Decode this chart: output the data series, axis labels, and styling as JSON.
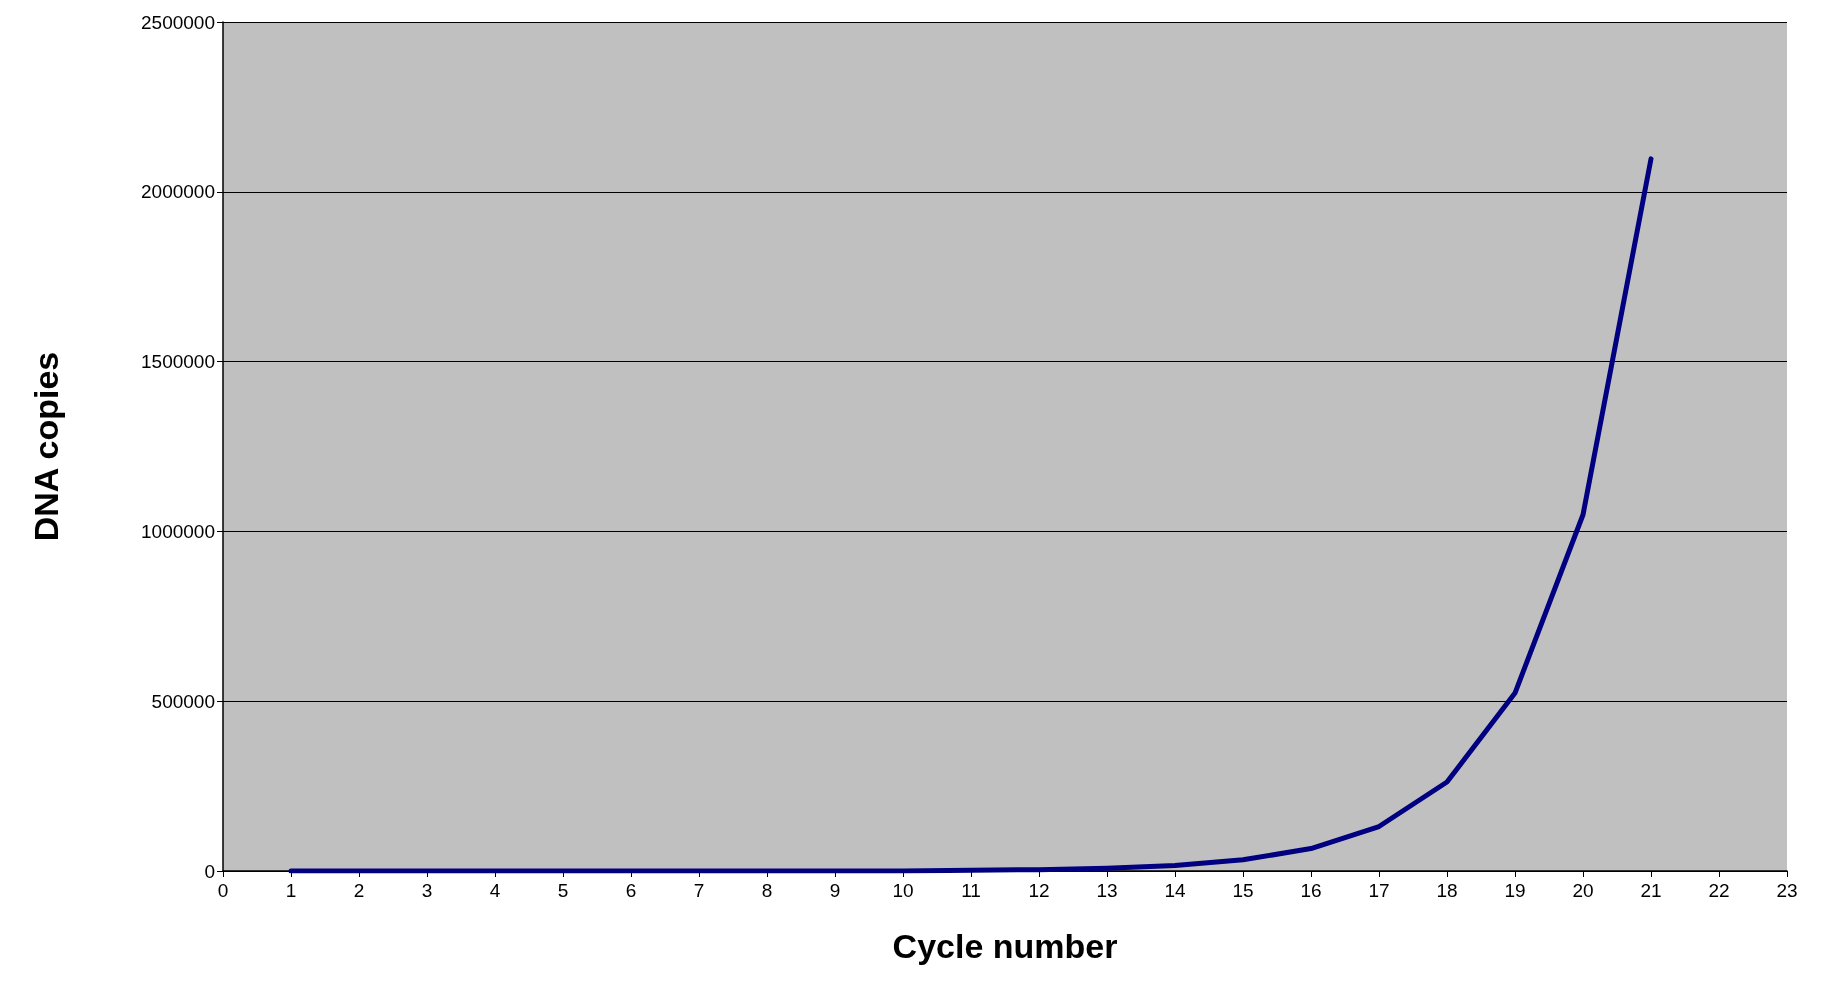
{
  "chart_data": {
    "type": "line",
    "xlabel": "Cycle number",
    "ylabel": "DNA copies",
    "x": [
      1,
      2,
      3,
      4,
      5,
      6,
      7,
      8,
      9,
      10,
      11,
      12,
      13,
      14,
      15,
      16,
      17,
      18,
      19,
      20,
      21
    ],
    "series": [
      {
        "color": "#000080",
        "values": [
          0,
          0,
          0,
          0,
          0,
          0,
          0,
          0,
          0,
          0,
          2000,
          4000,
          8000,
          16000,
          33000,
          66000,
          131000,
          262000,
          524000,
          1049000,
          2097000
        ]
      }
    ],
    "xlim": [
      0,
      23
    ],
    "xticks": [
      0,
      1,
      2,
      3,
      4,
      5,
      6,
      7,
      8,
      9,
      10,
      11,
      12,
      13,
      14,
      15,
      16,
      17,
      18,
      19,
      20,
      21,
      22,
      23
    ],
    "ylim": [
      0,
      2500000
    ],
    "yticks": [
      0,
      500000,
      1000000,
      1500000,
      2000000,
      2500000
    ],
    "grid": "y",
    "marker": "none",
    "line_style": "solid"
  }
}
